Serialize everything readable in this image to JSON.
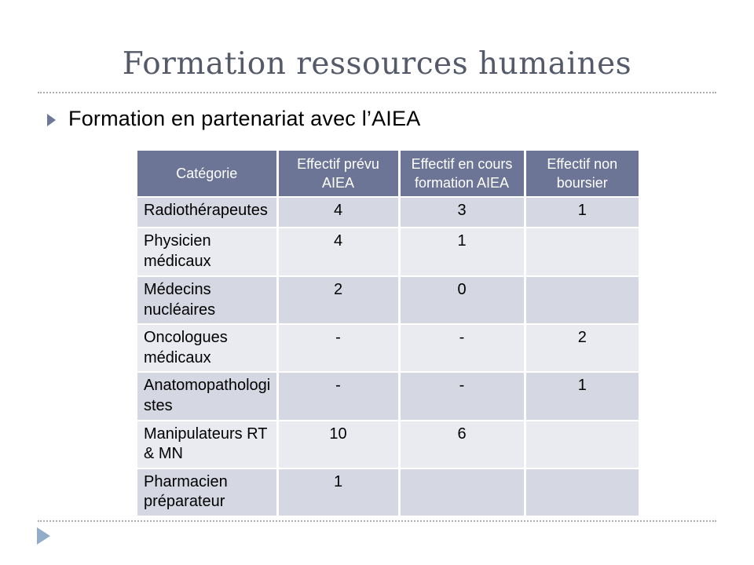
{
  "slide": {
    "title": "Formation ressources humaines",
    "bullet": "Formation en partenariat avec l’AIEA"
  },
  "icons": {
    "bullet": "right-pointing-triangle-icon",
    "corner": "right-pointing-triangle-icon"
  },
  "colors": {
    "title_text": "#555a6b",
    "header_bg": "#6c7596",
    "header_text": "#ffffff",
    "row_odd_bg": "#d5d7e3",
    "row_even_bg": "#eaebf1",
    "bullet_triangle": "#6e7795",
    "corner_triangle": "#91adca",
    "dotted_line": "#adadad",
    "body_text": "#000000"
  },
  "table": {
    "columns": [
      "Catégorie",
      "Effectif prévu AIEA",
      "Effectif en cours formation AIEA",
      "Effectif non boursier"
    ],
    "rows": [
      [
        "Radiothérapeutes",
        "4",
        "3",
        "1"
      ],
      [
        "Physicien médicaux",
        "4",
        "1",
        ""
      ],
      [
        "Médecins nucléaires",
        "2",
        "0",
        ""
      ],
      [
        "Oncologues médicaux",
        "-",
        "-",
        "2"
      ],
      [
        "Anatomopathologistes",
        "-",
        "-",
        "1"
      ],
      [
        "Manipulateurs RT & MN",
        "10",
        "6",
        ""
      ],
      [
        "Pharmacien préparateur",
        "1",
        "",
        ""
      ]
    ]
  }
}
